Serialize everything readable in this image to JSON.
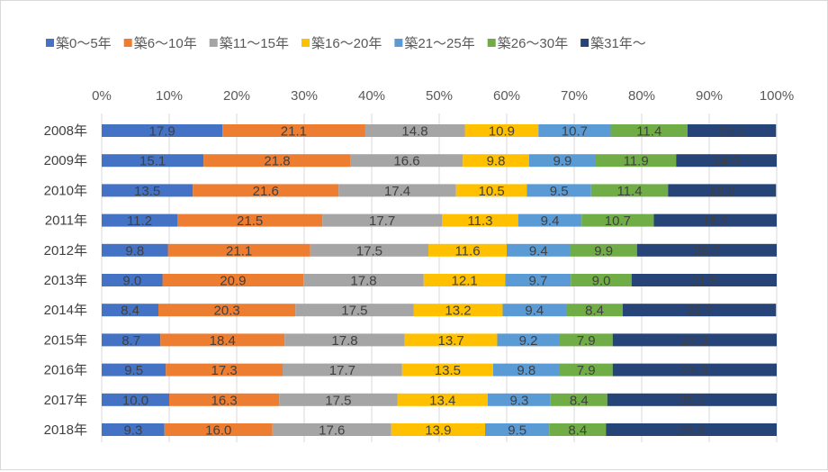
{
  "chart_data": {
    "type": "bar",
    "orientation": "horizontal",
    "stacked": "100%",
    "title": "",
    "xlim": [
      0,
      100
    ],
    "x_ticks": [
      "0%",
      "10%",
      "20%",
      "30%",
      "40%",
      "50%",
      "60%",
      "70%",
      "80%",
      "90%",
      "100%"
    ],
    "grid": true,
    "legend_position": "top",
    "categories": [
      "2008年",
      "2009年",
      "2010年",
      "2011年",
      "2012年",
      "2013年",
      "2014年",
      "2015年",
      "2016年",
      "2017年",
      "2018年"
    ],
    "series": [
      {
        "name": "築0～5年",
        "color": "#4472c4",
        "values": [
          17.9,
          15.1,
          13.5,
          11.2,
          9.8,
          9.0,
          8.4,
          8.7,
          9.5,
          10.0,
          9.3
        ]
      },
      {
        "name": "築6～10年",
        "color": "#ed7d31",
        "values": [
          21.1,
          21.8,
          21.6,
          21.5,
          21.1,
          20.9,
          20.3,
          18.4,
          17.3,
          16.3,
          16.0
        ]
      },
      {
        "name": "築11～15年",
        "color": "#a5a5a5",
        "values": [
          14.8,
          16.6,
          17.4,
          17.7,
          17.5,
          17.8,
          17.5,
          17.8,
          17.7,
          17.5,
          17.6
        ]
      },
      {
        "name": "築16～20年",
        "color": "#ffc000",
        "values": [
          10.9,
          9.8,
          10.5,
          11.3,
          11.6,
          12.1,
          13.2,
          13.7,
          13.5,
          13.4,
          13.9
        ]
      },
      {
        "name": "築21～25年",
        "color": "#5b9bd5",
        "values": [
          10.7,
          9.9,
          9.5,
          9.4,
          9.4,
          9.7,
          9.4,
          9.2,
          9.8,
          9.3,
          9.5
        ]
      },
      {
        "name": "築26～30年",
        "color": "#70ad47",
        "values": [
          11.4,
          11.9,
          11.4,
          10.7,
          9.9,
          9.0,
          8.4,
          7.9,
          7.9,
          8.4,
          8.4
        ]
      },
      {
        "name": "築31年～",
        "color": "#264478",
        "values": [
          13.1,
          14.9,
          16.0,
          18.2,
          20.7,
          21.5,
          22.7,
          24.3,
          24.3,
          25.1,
          25.3
        ]
      }
    ]
  }
}
